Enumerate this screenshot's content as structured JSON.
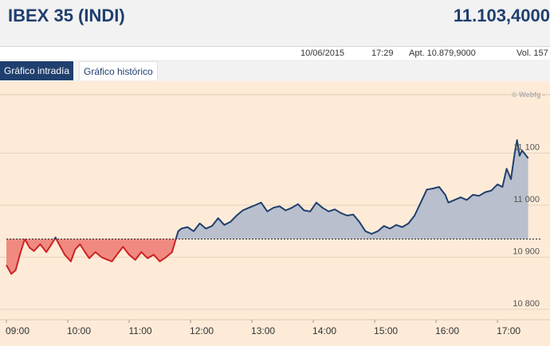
{
  "header": {
    "title": "IBEX 35 (INDI)",
    "price": "11.103,4000"
  },
  "info": {
    "date": "10/06/2015",
    "time": "17:29",
    "open": "Apt. 10.879,9000",
    "volume": "Vol. 157"
  },
  "tabs": [
    {
      "label": "Gráfico intradía"
    },
    {
      "label": "Gráfico histórico"
    }
  ],
  "chart_data": {
    "type": "line",
    "watermark": "© Webfg -",
    "baseline": 10935,
    "ylim": [
      10780,
      11200
    ],
    "xlim": [
      9.0,
      17.7
    ],
    "yticks": [
      10800,
      10900,
      11000,
      11100
    ],
    "ytick_labels": [
      "10 800",
      "10 900",
      "11 000",
      "11 100"
    ],
    "xticks": [
      9,
      10,
      11,
      12,
      13,
      14,
      15,
      16,
      17
    ],
    "xtick_labels": [
      "09:00",
      "10:00",
      "11:00",
      "12:00",
      "13:00",
      "14:00",
      "15:00",
      "16:00",
      "17:00"
    ],
    "colors": {
      "line": "#1f3f6e",
      "above": "#b9bfcc",
      "below": "#f08a80",
      "below_line": "#cc2222"
    },
    "series": [
      {
        "x": [
          9.0,
          9.08,
          9.15,
          9.22,
          9.3,
          9.38,
          9.45,
          9.55,
          9.65,
          9.72,
          9.8,
          9.88,
          9.95,
          10.05,
          10.12,
          10.2,
          10.28,
          10.35,
          10.45,
          10.55,
          10.65,
          10.72,
          10.8,
          10.9,
          11.0,
          11.1,
          11.2,
          11.3,
          11.4,
          11.5,
          11.6,
          11.7,
          11.76,
          11.8,
          11.85,
          11.95,
          12.05,
          12.15,
          12.25,
          12.35,
          12.45,
          12.55,
          12.65,
          12.75,
          12.85,
          12.95,
          13.05,
          13.15,
          13.25,
          13.35,
          13.45,
          13.55,
          13.65,
          13.75,
          13.85,
          13.95,
          14.05,
          14.15,
          14.25,
          14.35,
          14.45,
          14.55,
          14.65,
          14.75,
          14.85,
          14.95,
          15.05,
          15.15,
          15.25,
          15.35,
          15.45,
          15.55,
          15.65,
          15.75,
          15.85,
          15.95,
          16.05,
          16.15,
          16.2,
          16.3,
          16.4,
          16.5,
          16.6,
          16.7,
          16.8,
          16.9,
          17.0,
          17.08,
          17.15,
          17.22,
          17.28,
          17.32,
          17.36,
          17.4,
          17.45,
          17.5
        ],
        "y": [
          10885,
          10868,
          10875,
          10905,
          10935,
          10918,
          10912,
          10925,
          10910,
          10922,
          10938,
          10920,
          10905,
          10892,
          10915,
          10925,
          10910,
          10898,
          10910,
          10900,
          10895,
          10892,
          10905,
          10920,
          10905,
          10895,
          10910,
          10898,
          10905,
          10892,
          10900,
          10910,
          10935,
          10950,
          10955,
          10958,
          10950,
          10965,
          10955,
          10960,
          10975,
          10962,
          10968,
          10980,
          10990,
          10995,
          11000,
          11005,
          10988,
          10995,
          10998,
          10990,
          10995,
          11002,
          10990,
          10988,
          11005,
          10995,
          10988,
          10992,
          10985,
          10980,
          10982,
          10968,
          10950,
          10945,
          10950,
          10960,
          10955,
          10962,
          10958,
          10965,
          10980,
          11005,
          11030,
          11032,
          11035,
          11020,
          11005,
          11010,
          11015,
          11010,
          11020,
          11018,
          11025,
          11028,
          11040,
          11035,
          11070,
          11050,
          11100,
          11125,
          11095,
          11105,
          11098,
          11090
        ]
      }
    ]
  }
}
